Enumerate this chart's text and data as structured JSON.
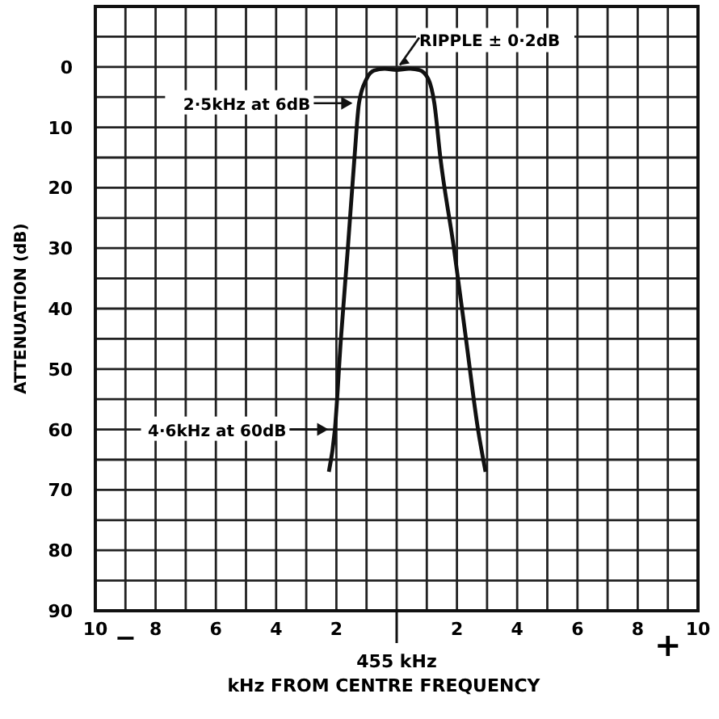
{
  "chart_data": {
    "type": "line",
    "xlabel": "kHz FROM CENTRE FREQUENCY",
    "ylabel": "ATTENUATION (dB)",
    "x": [
      -2.25,
      -2.05,
      -1.85,
      -1.62,
      -1.4,
      -1.25,
      -1.0,
      -0.75,
      -0.4,
      0,
      0.4,
      0.75,
      1.05,
      1.25,
      1.45,
      1.9,
      2.3,
      2.7,
      2.95
    ],
    "series": [
      {
        "color": "#111111",
        "values": [
          67,
          60,
          45,
          30,
          15,
          6,
          2,
          0.6,
          0.3,
          0.5,
          0.3,
          0.5,
          2,
          6,
          15,
          30,
          45,
          60,
          67
        ]
      }
    ],
    "xlim": [
      -10,
      10
    ],
    "ylim": [
      90,
      -10
    ],
    "xticks": [
      {
        "value": -10,
        "label": "10"
      },
      {
        "value": -9,
        "label": null
      },
      {
        "value": -8,
        "label": "8"
      },
      {
        "value": -7,
        "label": null
      },
      {
        "value": -6,
        "label": "6"
      },
      {
        "value": -5,
        "label": null
      },
      {
        "value": -4,
        "label": "4"
      },
      {
        "value": -3,
        "label": null
      },
      {
        "value": -2,
        "label": "2"
      },
      {
        "value": -1,
        "label": null
      },
      {
        "value": 0,
        "label": null
      },
      {
        "value": 1,
        "label": null
      },
      {
        "value": 2,
        "label": "2"
      },
      {
        "value": 3,
        "label": null
      },
      {
        "value": 4,
        "label": "4"
      },
      {
        "value": 5,
        "label": null
      },
      {
        "value": 6,
        "label": "6"
      },
      {
        "value": 7,
        "label": null
      },
      {
        "value": 8,
        "label": "8"
      },
      {
        "value": 9,
        "label": null
      },
      {
        "value": 10,
        "label": "10"
      }
    ],
    "yticks": [
      {
        "value": -10,
        "label": null
      },
      {
        "value": -5,
        "label": null
      },
      0,
      {
        "value": 5,
        "label": null
      },
      10,
      {
        "value": 15,
        "label": null
      },
      20,
      {
        "value": 25,
        "label": null
      },
      30,
      {
        "value": 35,
        "label": null
      },
      40,
      {
        "value": 45,
        "label": null
      },
      50,
      {
        "value": 55,
        "label": null
      },
      60,
      {
        "value": 65,
        "label": null
      },
      70,
      {
        "value": 75,
        "label": null
      },
      80,
      {
        "value": 85,
        "label": null
      },
      90
    ],
    "grid": true,
    "marker": "none",
    "line_style": "solid",
    "annotations": [
      "RIPPLE ± 0·2dB",
      "2·5kHz at 6dB",
      "4·6kHz at 60dB",
      "−",
      "+",
      "455 kHz"
    ]
  }
}
